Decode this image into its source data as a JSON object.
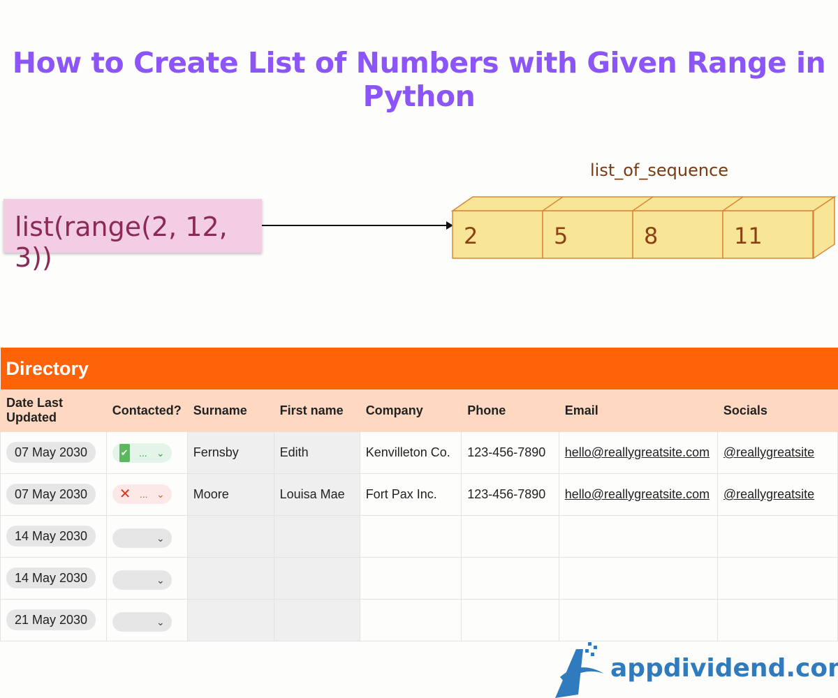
{
  "title": "How to Create List of Numbers with Given Range in Python",
  "code": "list(range(2, 12, 3))",
  "sequence_label": "list_of_sequence",
  "sequence": [
    "2",
    "5",
    "8",
    "11"
  ],
  "directory": {
    "title": "Directory",
    "headers": [
      "Date Last Updated",
      "Contacted?",
      "Surname",
      "First name",
      "Company",
      "Phone",
      "Email",
      "Socials"
    ],
    "rows": [
      {
        "date": "07 May 2030",
        "contacted": "yes",
        "status": "...",
        "surname": "Fernsby",
        "first": "Edith",
        "company": "Kenvilleton Co.",
        "phone": "123-456-7890",
        "email": "hello@reallygreatsite.com",
        "social": "@reallygreatsite"
      },
      {
        "date": "07 May 2030",
        "contacted": "no",
        "status": "...",
        "surname": "Moore",
        "first": "Louisa Mae",
        "company": "Fort Pax Inc.",
        "phone": "123-456-7890",
        "email": "hello@reallygreatsite.com",
        "social": "@reallygreatsite"
      },
      {
        "date": "14 May 2030"
      },
      {
        "date": "14 May 2030"
      },
      {
        "date": "21 May 2030"
      }
    ]
  },
  "logo": "appdividend.com",
  "colors": {
    "title": "#8b55f7",
    "header": "#ff6309",
    "subheader": "#ffd8c1",
    "box": "#f9e596",
    "logo": "#2f7bbd"
  }
}
